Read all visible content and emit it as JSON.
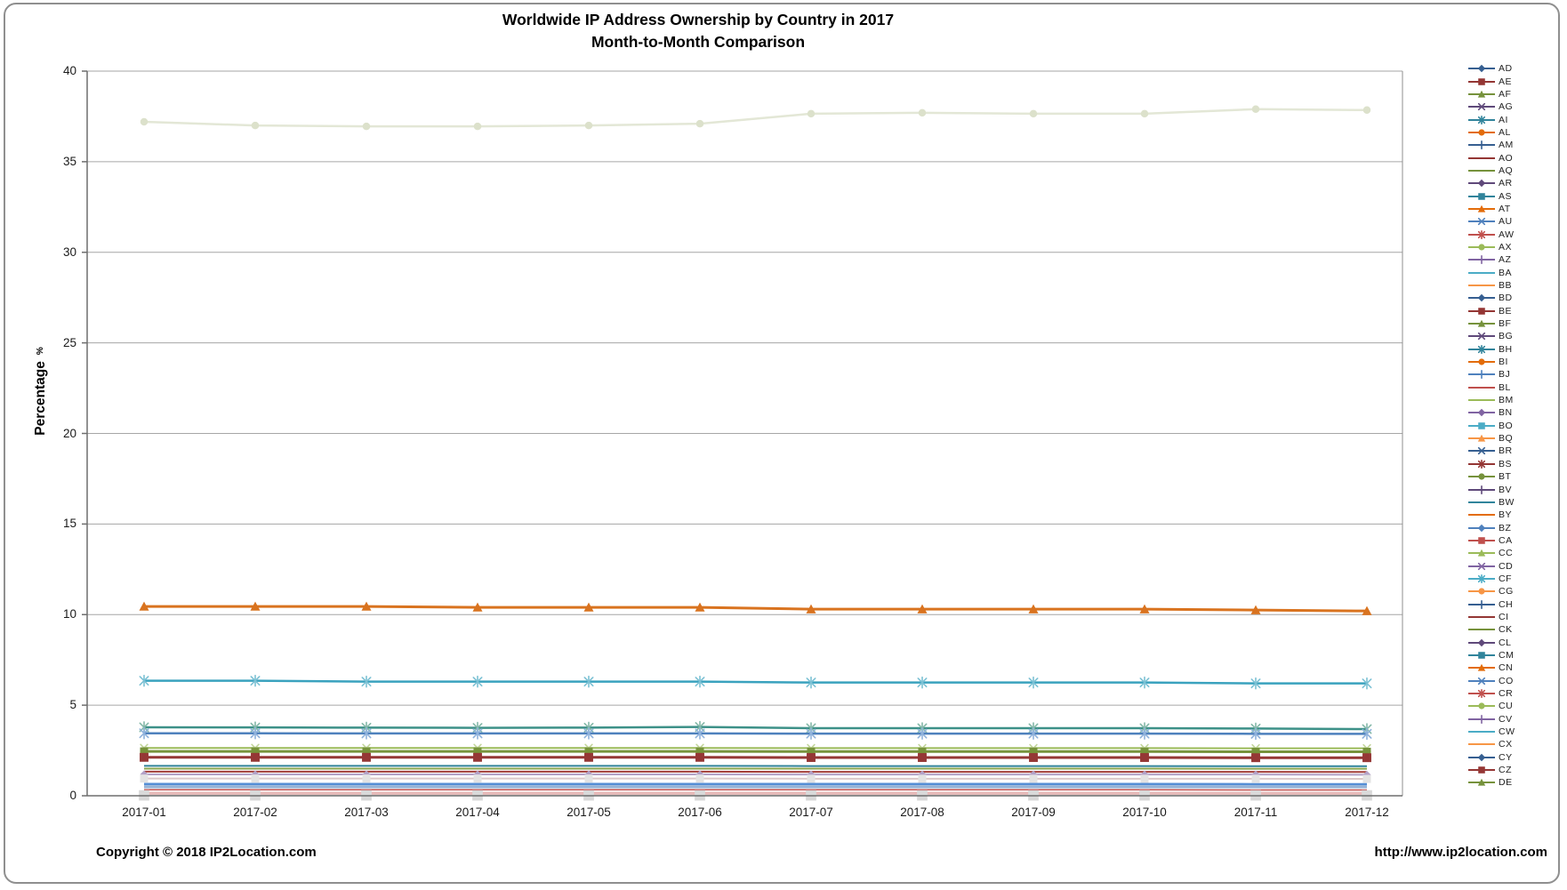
{
  "title": {
    "line1": "Worldwide IP Address Ownership by Country in 2017",
    "line2": "Month-to-Month Comparison"
  },
  "y_axis": {
    "title": "Percentage",
    "suffix": "%",
    "tick_labels": [
      "0",
      "5",
      "10",
      "15",
      "20",
      "25",
      "30",
      "35",
      "40"
    ],
    "min": 0,
    "max": 40,
    "step": 5
  },
  "x_axis": {
    "labels": [
      "2017-01",
      "2017-02",
      "2017-03",
      "2017-04",
      "2017-05",
      "2017-06",
      "2017-07",
      "2017-08",
      "2017-09",
      "2017-10",
      "2017-11",
      "2017-12"
    ]
  },
  "footer": {
    "copyright": "Copyright © 2018 IP2Location.com",
    "url": "http://www.ip2location.com"
  },
  "legend": {
    "items": [
      {
        "label": "AD",
        "color": "#365F91",
        "marker": "diamond"
      },
      {
        "label": "AE",
        "color": "#943634",
        "marker": "square"
      },
      {
        "label": "AF",
        "color": "#76923C",
        "marker": "triangle"
      },
      {
        "label": "AG",
        "color": "#5F497A",
        "marker": "x"
      },
      {
        "label": "AI",
        "color": "#31849B",
        "marker": "asterisk"
      },
      {
        "label": "AL",
        "color": "#E36C0A",
        "marker": "circle"
      },
      {
        "label": "AM",
        "color": "#365F91",
        "marker": "plus"
      },
      {
        "label": "AO",
        "color": "#943634",
        "marker": "none"
      },
      {
        "label": "AQ",
        "color": "#76923C",
        "marker": "none"
      },
      {
        "label": "AR",
        "color": "#5F497A",
        "marker": "diamond"
      },
      {
        "label": "AS",
        "color": "#31849B",
        "marker": "square"
      },
      {
        "label": "AT",
        "color": "#E36C0A",
        "marker": "triangle"
      },
      {
        "label": "AU",
        "color": "#4F81BD",
        "marker": "x"
      },
      {
        "label": "AW",
        "color": "#C0504D",
        "marker": "asterisk"
      },
      {
        "label": "AX",
        "color": "#9BBB59",
        "marker": "circle"
      },
      {
        "label": "AZ",
        "color": "#8064A2",
        "marker": "plus"
      },
      {
        "label": "BA",
        "color": "#4BACC6",
        "marker": "none"
      },
      {
        "label": "BB",
        "color": "#F79646",
        "marker": "none"
      },
      {
        "label": "BD",
        "color": "#365F91",
        "marker": "diamond"
      },
      {
        "label": "BE",
        "color": "#943634",
        "marker": "square"
      },
      {
        "label": "BF",
        "color": "#76923C",
        "marker": "triangle"
      },
      {
        "label": "BG",
        "color": "#5F497A",
        "marker": "x"
      },
      {
        "label": "BH",
        "color": "#31849B",
        "marker": "asterisk"
      },
      {
        "label": "BI",
        "color": "#E36C0A",
        "marker": "circle"
      },
      {
        "label": "BJ",
        "color": "#4F81BD",
        "marker": "plus"
      },
      {
        "label": "BL",
        "color": "#C0504D",
        "marker": "none"
      },
      {
        "label": "BM",
        "color": "#9BBB59",
        "marker": "none"
      },
      {
        "label": "BN",
        "color": "#8064A2",
        "marker": "diamond"
      },
      {
        "label": "BO",
        "color": "#4BACC6",
        "marker": "square"
      },
      {
        "label": "BQ",
        "color": "#F79646",
        "marker": "triangle"
      },
      {
        "label": "BR",
        "color": "#365F91",
        "marker": "x"
      },
      {
        "label": "BS",
        "color": "#943634",
        "marker": "asterisk"
      },
      {
        "label": "BT",
        "color": "#76923C",
        "marker": "circle"
      },
      {
        "label": "BV",
        "color": "#5F497A",
        "marker": "plus"
      },
      {
        "label": "BW",
        "color": "#31849B",
        "marker": "none"
      },
      {
        "label": "BY",
        "color": "#E36C0A",
        "marker": "none"
      },
      {
        "label": "BZ",
        "color": "#4F81BD",
        "marker": "diamond"
      },
      {
        "label": "CA",
        "color": "#C0504D",
        "marker": "square"
      },
      {
        "label": "CC",
        "color": "#9BBB59",
        "marker": "triangle"
      },
      {
        "label": "CD",
        "color": "#8064A2",
        "marker": "x"
      },
      {
        "label": "CF",
        "color": "#4BACC6",
        "marker": "asterisk"
      },
      {
        "label": "CG",
        "color": "#F79646",
        "marker": "circle"
      },
      {
        "label": "CH",
        "color": "#365F91",
        "marker": "plus"
      },
      {
        "label": "CI",
        "color": "#943634",
        "marker": "none"
      },
      {
        "label": "CK",
        "color": "#76923C",
        "marker": "none"
      },
      {
        "label": "CL",
        "color": "#5F497A",
        "marker": "diamond"
      },
      {
        "label": "CM",
        "color": "#31849B",
        "marker": "square"
      },
      {
        "label": "CN",
        "color": "#E36C0A",
        "marker": "triangle"
      },
      {
        "label": "CO",
        "color": "#4F81BD",
        "marker": "x"
      },
      {
        "label": "CR",
        "color": "#C0504D",
        "marker": "asterisk"
      },
      {
        "label": "CU",
        "color": "#9BBB59",
        "marker": "circle"
      },
      {
        "label": "CV",
        "color": "#8064A2",
        "marker": "plus"
      },
      {
        "label": "CW",
        "color": "#4BACC6",
        "marker": "none"
      },
      {
        "label": "CX",
        "color": "#F79646",
        "marker": "none"
      },
      {
        "label": "CY",
        "color": "#365F91",
        "marker": "diamond"
      },
      {
        "label": "CZ",
        "color": "#943634",
        "marker": "square"
      },
      {
        "label": "DE",
        "color": "#76923C",
        "marker": "triangle"
      }
    ]
  },
  "chart_data": {
    "type": "line",
    "title": "Worldwide IP Address Ownership by Country in 2017 — Month-to-Month Comparison",
    "ylabel": "Percentage %",
    "ylim": [
      0,
      40
    ],
    "grid": true,
    "legend_position": "right",
    "x": [
      "2017-01",
      "2017-02",
      "2017-03",
      "2017-04",
      "2017-05",
      "2017-06",
      "2017-07",
      "2017-08",
      "2017-09",
      "2017-10",
      "2017-11",
      "2017-12"
    ],
    "series": [
      {
        "id": "top-pale-green-line",
        "color": "#E3E7D6",
        "marker": "circle",
        "marker_color": "#DCE1CB",
        "width": 2.5,
        "msize": 5,
        "values": [
          37.2,
          37.0,
          36.95,
          36.95,
          37.0,
          37.1,
          37.65,
          37.7,
          37.65,
          37.65,
          37.9,
          37.85
        ]
      },
      {
        "id": "orange-triangle-line",
        "color": "#D9731F",
        "marker": "triangle",
        "width": 3,
        "msize": 5.5,
        "values": [
          10.45,
          10.45,
          10.45,
          10.4,
          10.4,
          10.4,
          10.3,
          10.3,
          10.3,
          10.3,
          10.25,
          10.2
        ]
      },
      {
        "id": "teal-asterisk-line",
        "color": "#3AA2BE",
        "marker": "asterisk",
        "marker_color": "#7CC1D4",
        "width": 2.5,
        "msize": 6,
        "values": [
          6.35,
          6.35,
          6.3,
          6.3,
          6.3,
          6.3,
          6.25,
          6.25,
          6.25,
          6.25,
          6.2,
          6.2
        ]
      },
      {
        "id": "dark-teal-asterisk-line",
        "color": "#3D9188",
        "marker": "asterisk",
        "marker_color": "#84B8A8",
        "width": 2.5,
        "msize": 6,
        "values": [
          3.78,
          3.77,
          3.76,
          3.75,
          3.76,
          3.8,
          3.73,
          3.73,
          3.73,
          3.73,
          3.71,
          3.68
        ]
      },
      {
        "id": "steel-blue-asterisk-line",
        "color": "#4E81BD",
        "marker": "asterisk",
        "marker_color": "#8FB2DC",
        "width": 2.5,
        "msize": 6,
        "values": [
          3.45,
          3.45,
          3.44,
          3.44,
          3.44,
          3.44,
          3.43,
          3.43,
          3.43,
          3.43,
          3.42,
          3.42
        ]
      },
      {
        "id": "light-green-x-line",
        "color": "#9BBB59",
        "marker": "x",
        "marker_color": "#C2D59A",
        "width": 2,
        "msize": 5,
        "values": [
          2.64,
          2.64,
          2.64,
          2.64,
          2.64,
          2.64,
          2.63,
          2.63,
          2.63,
          2.63,
          2.62,
          2.62
        ]
      },
      {
        "id": "olive-square-line",
        "color": "#77933C",
        "marker": "square",
        "width": 3,
        "msize": 5,
        "values": [
          2.45,
          2.45,
          2.45,
          2.45,
          2.45,
          2.45,
          2.44,
          2.44,
          2.44,
          2.44,
          2.43,
          2.43
        ]
      },
      {
        "id": "dark-red-square-line",
        "color": "#953735",
        "marker": "square",
        "width": 3,
        "msize": 5.5,
        "values": [
          2.12,
          2.12,
          2.12,
          2.12,
          2.12,
          2.12,
          2.11,
          2.11,
          2.11,
          2.11,
          2.1,
          2.1
        ]
      },
      {
        "id": "teal-thin-line",
        "color": "#31849B",
        "marker": "none",
        "width": 2,
        "values": [
          1.65,
          1.65,
          1.65,
          1.65,
          1.65,
          1.65,
          1.64,
          1.64,
          1.64,
          1.64,
          1.63,
          1.63
        ]
      },
      {
        "id": "green-thin-line",
        "color": "#89A54E",
        "marker": "none",
        "width": 2,
        "values": [
          1.5,
          1.5,
          1.5,
          1.5,
          1.5,
          1.5,
          1.5,
          1.5,
          1.5,
          1.5,
          1.49,
          1.49
        ]
      },
      {
        "id": "dark-red-thin-line",
        "color": "#A33E38",
        "marker": "none",
        "width": 2,
        "values": [
          1.33,
          1.33,
          1.33,
          1.33,
          1.33,
          1.33,
          1.32,
          1.32,
          1.32,
          1.32,
          1.32,
          1.31
        ]
      },
      {
        "id": "lavender-diamond-line",
        "color": "#B3A2C7",
        "marker": "diamond",
        "width": 2,
        "msize": 4.5,
        "values": [
          1.18,
          1.18,
          1.18,
          1.18,
          1.18,
          1.18,
          1.17,
          1.17,
          1.17,
          1.17,
          1.17,
          1.16
        ]
      },
      {
        "id": "pale-square-marker-line",
        "color": "#DBC8C8",
        "marker": "square",
        "marker_color": "#E3E3E3",
        "width": 2,
        "msize": 5,
        "values": [
          0.95,
          0.95,
          0.95,
          0.95,
          0.95,
          0.95,
          0.94,
          0.94,
          0.94,
          0.94,
          0.94,
          0.93
        ]
      },
      {
        "id": "medium-blue-line",
        "color": "#558ED5",
        "marker": "none",
        "width": 2.5,
        "values": [
          0.65,
          0.65,
          0.65,
          0.65,
          0.65,
          0.65,
          0.65,
          0.65,
          0.65,
          0.65,
          0.64,
          0.64
        ]
      },
      {
        "id": "light-blue-band-line",
        "color": "#95B3D7",
        "marker": "none",
        "width": 3.5,
        "values": [
          0.5,
          0.5,
          0.5,
          0.5,
          0.5,
          0.5,
          0.5,
          0.5,
          0.5,
          0.5,
          0.5,
          0.5
        ]
      },
      {
        "id": "thin-red-line",
        "color": "#C0504D",
        "marker": "none",
        "width": 1.5,
        "values": [
          0.33,
          0.33,
          0.33,
          0.33,
          0.33,
          0.33,
          0.33,
          0.33,
          0.33,
          0.33,
          0.32,
          0.32
        ]
      },
      {
        "id": "pink-band-line",
        "color": "#E6B9B8",
        "marker": "none",
        "width": 4,
        "values": [
          0.13,
          0.13,
          0.13,
          0.13,
          0.13,
          0.13,
          0.13,
          0.13,
          0.13,
          0.13,
          0.12,
          0.12
        ]
      },
      {
        "id": "gray-square-marker-line",
        "color": "#D9D9D9",
        "marker": "square",
        "marker_color": "#D9D9D9",
        "width": 1.5,
        "msize": 6.5,
        "values": [
          0.02,
          0.02,
          0.02,
          0.02,
          0.02,
          0.02,
          0.02,
          0.02,
          0.02,
          0.02,
          0.02,
          0.02
        ]
      }
    ]
  }
}
